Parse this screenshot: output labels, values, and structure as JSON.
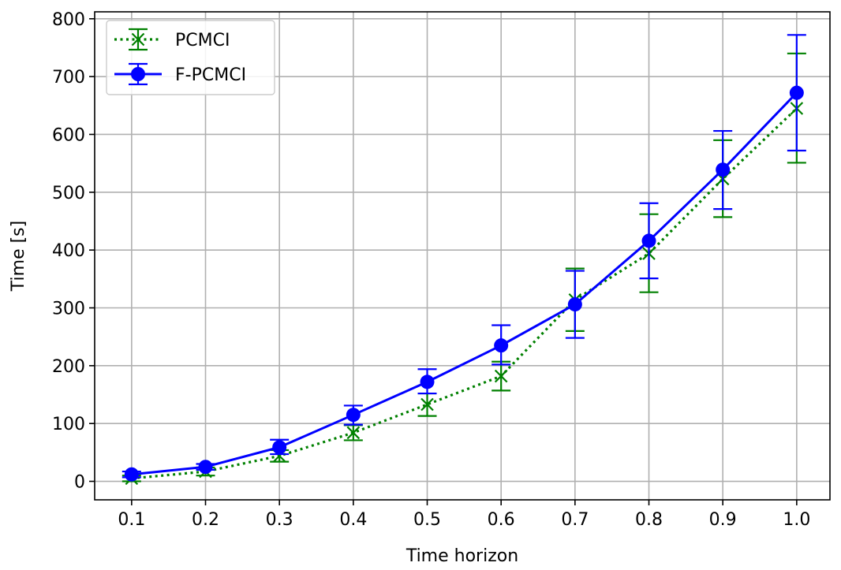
{
  "chart_data": {
    "type": "line",
    "title": "",
    "xlabel": "Time horizon",
    "ylabel": "Time [s]",
    "x": [
      0.1,
      0.2,
      0.3,
      0.4,
      0.5,
      0.6,
      0.7,
      0.8,
      0.9,
      1.0
    ],
    "x_tick_labels": [
      "0.1",
      "0.2",
      "0.3",
      "0.4",
      "0.5",
      "0.6",
      "0.7",
      "0.8",
      "0.9",
      "1.0"
    ],
    "y_ticks": [
      0,
      100,
      200,
      300,
      400,
      500,
      600,
      700,
      800
    ],
    "y_tick_labels": [
      "0",
      "100",
      "200",
      "300",
      "400",
      "500",
      "600",
      "700",
      "800"
    ],
    "xlim": [
      0.05,
      1.045
    ],
    "ylim": [
      -32,
      812
    ],
    "grid": true,
    "legend_position": "top-left",
    "series": [
      {
        "name": "PCMCI",
        "color": "#008000",
        "line_style": "dotted",
        "marker": "x",
        "values": [
          5,
          17,
          44,
          84,
          133,
          182,
          314,
          394,
          523,
          645
        ],
        "error_low": [
          0,
          10,
          34,
          71,
          113,
          157,
          260,
          327,
          457,
          551
        ],
        "error_high": [
          10,
          24,
          54,
          97,
          152,
          207,
          368,
          462,
          590,
          740
        ]
      },
      {
        "name": "F-PCMCI",
        "color": "#0000ff",
        "line_style": "solid",
        "marker": "circle",
        "values": [
          12,
          25,
          59,
          115,
          172,
          235,
          306,
          416,
          539,
          672
        ],
        "error_low": [
          7,
          20,
          47,
          98,
          152,
          202,
          248,
          351,
          471,
          572
        ],
        "error_high": [
          17,
          30,
          72,
          131,
          194,
          270,
          364,
          481,
          606,
          772
        ]
      }
    ]
  }
}
